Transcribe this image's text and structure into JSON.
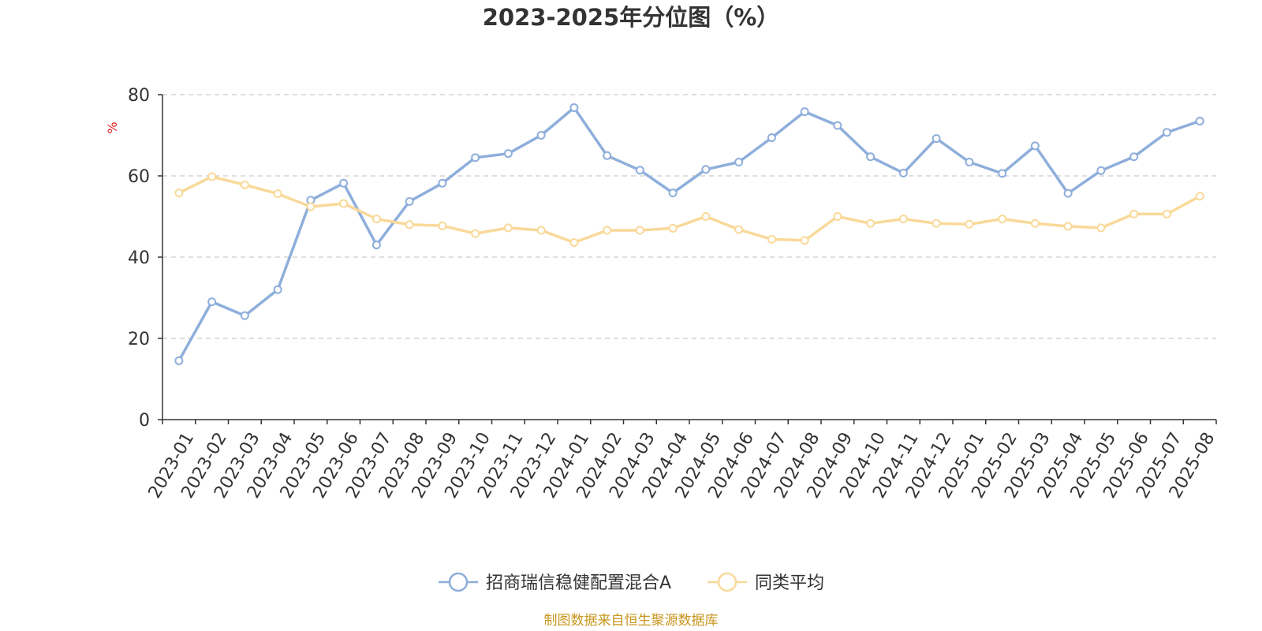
{
  "chart_data": {
    "type": "line",
    "title": "2023-2025年分位图（%）",
    "ylabel": "%",
    "ylim": [
      0,
      80
    ],
    "yticks": [
      0,
      20,
      40,
      60,
      80
    ],
    "grid": true,
    "legend_position": "bottom-center",
    "categories": [
      "2023-01",
      "2023-02",
      "2023-03",
      "2023-04",
      "2023-05",
      "2023-06",
      "2023-07",
      "2023-08",
      "2023-09",
      "2023-10",
      "2023-11",
      "2023-12",
      "2024-01",
      "2024-02",
      "2024-03",
      "2024-04",
      "2024-05",
      "2024-06",
      "2024-07",
      "2024-08",
      "2024-09",
      "2024-10",
      "2024-11",
      "2024-12",
      "2025-01",
      "2025-02",
      "2025-03",
      "2025-04",
      "2025-05",
      "2025-06",
      "2025-07",
      "2025-08"
    ],
    "series": [
      {
        "name": "招商瑞信稳健配置混合A",
        "color": "#8eaedb",
        "values": [
          14.5,
          29.0,
          25.6,
          32.0,
          54.0,
          58.2,
          43.0,
          53.7,
          58.2,
          64.5,
          65.5,
          70.0,
          76.8,
          65.0,
          61.4,
          55.8,
          61.6,
          63.4,
          69.4,
          75.8,
          72.4,
          64.7,
          60.7,
          69.2,
          63.4,
          60.6,
          67.4,
          55.7,
          61.3,
          64.7,
          70.7,
          73.5
        ]
      },
      {
        "name": "同类平均",
        "color": "#f9d999",
        "values": [
          55.8,
          59.8,
          57.8,
          55.6,
          52.4,
          53.2,
          49.4,
          48.0,
          47.7,
          45.8,
          47.2,
          46.6,
          43.6,
          46.6,
          46.6,
          47.1,
          50.0,
          46.8,
          44.4,
          44.1,
          50.0,
          48.3,
          49.4,
          48.3,
          48.1,
          49.4,
          48.3,
          47.6,
          47.2,
          50.6,
          50.6,
          55.0
        ]
      }
    ],
    "source_note": "制图数据来自恒生聚源数据库",
    "source_color": "#c8961e",
    "unit_color": "#e02020"
  }
}
